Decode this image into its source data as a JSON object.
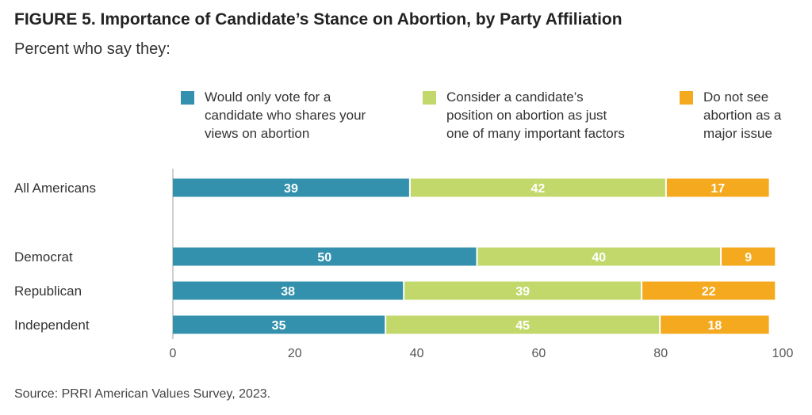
{
  "header": {
    "title": "FIGURE 5.  Importance of Candidate’s Stance on Abortion, by Party Affiliation",
    "subtitle": "Percent who say they:"
  },
  "legend": [
    {
      "label": "Would only vote for a candidate who shares your views on abortion",
      "lines": [
        "Would only vote for a",
        "candidate who shares your",
        "views on abortion"
      ],
      "color": "#3391AE"
    },
    {
      "label": "Consider a candidate’s position on abortion as just one of many important factors",
      "lines": [
        "Consider a candidate’s",
        "position on abortion as just",
        "one of many important factors"
      ],
      "color": "#C2D86B"
    },
    {
      "label": "Do not see abortion as a major issue",
      "lines": [
        "Do not see",
        "abortion as a",
        "major issue"
      ],
      "color": "#F4A91E"
    }
  ],
  "footer": {
    "source": "Source: PRRI American Values Survey, 2023."
  },
  "chart_data": {
    "type": "bar",
    "orientation": "horizontal",
    "stacked": true,
    "categories": [
      "All Americans",
      "Democrat",
      "Republican",
      "Independent"
    ],
    "series": [
      {
        "name": "Would only vote for a candidate who shares your views on abortion",
        "values": [
          39,
          50,
          38,
          35
        ],
        "color": "#3391AE"
      },
      {
        "name": "Consider a candidate’s position on abortion as just one of many important factors",
        "values": [
          42,
          40,
          39,
          45
        ],
        "color": "#C2D86B"
      },
      {
        "name": "Do not see abortion as a major issue",
        "values": [
          17,
          9,
          22,
          18
        ],
        "color": "#F4A91E"
      }
    ],
    "xlim": [
      0,
      100
    ],
    "xticks": [
      0,
      20,
      40,
      60,
      80,
      100
    ],
    "grid": false,
    "legend_position": "top"
  }
}
